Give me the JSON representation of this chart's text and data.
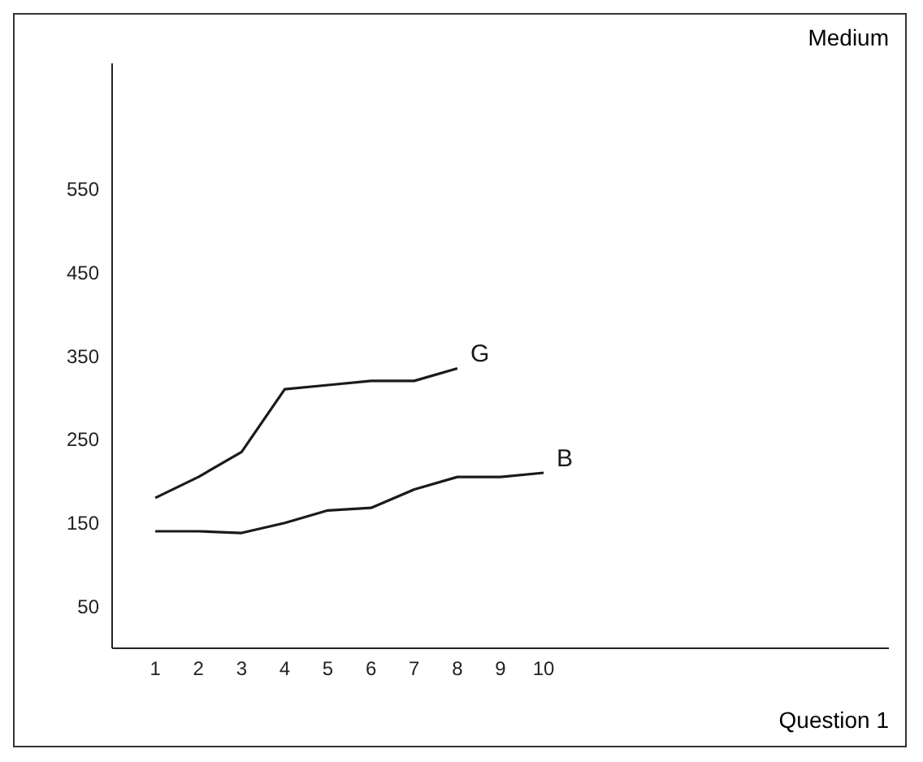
{
  "chart_data": {
    "type": "line",
    "title": "Medium",
    "xlabel": "Question 1",
    "x": [
      1,
      2,
      3,
      4,
      5,
      6,
      7,
      8,
      9,
      10
    ],
    "series": [
      {
        "name": "G",
        "color": "#1a1a1a",
        "values": [
          180,
          205,
          235,
          310,
          315,
          320,
          320,
          335,
          null,
          null
        ]
      },
      {
        "name": "B",
        "color": "#1a1a1a",
        "values": [
          140,
          140,
          138,
          150,
          165,
          168,
          190,
          205,
          205,
          210
        ]
      }
    ],
    "xlim": [
      0,
      18
    ],
    "xticks": [
      1,
      2,
      3,
      4,
      5,
      6,
      7,
      8,
      9,
      10
    ],
    "ylim": [
      0,
      700
    ],
    "yticks": [
      50,
      150,
      250,
      350,
      450,
      550
    ],
    "grid": false,
    "legend": false,
    "marker": "none",
    "line_style": "solid"
  }
}
